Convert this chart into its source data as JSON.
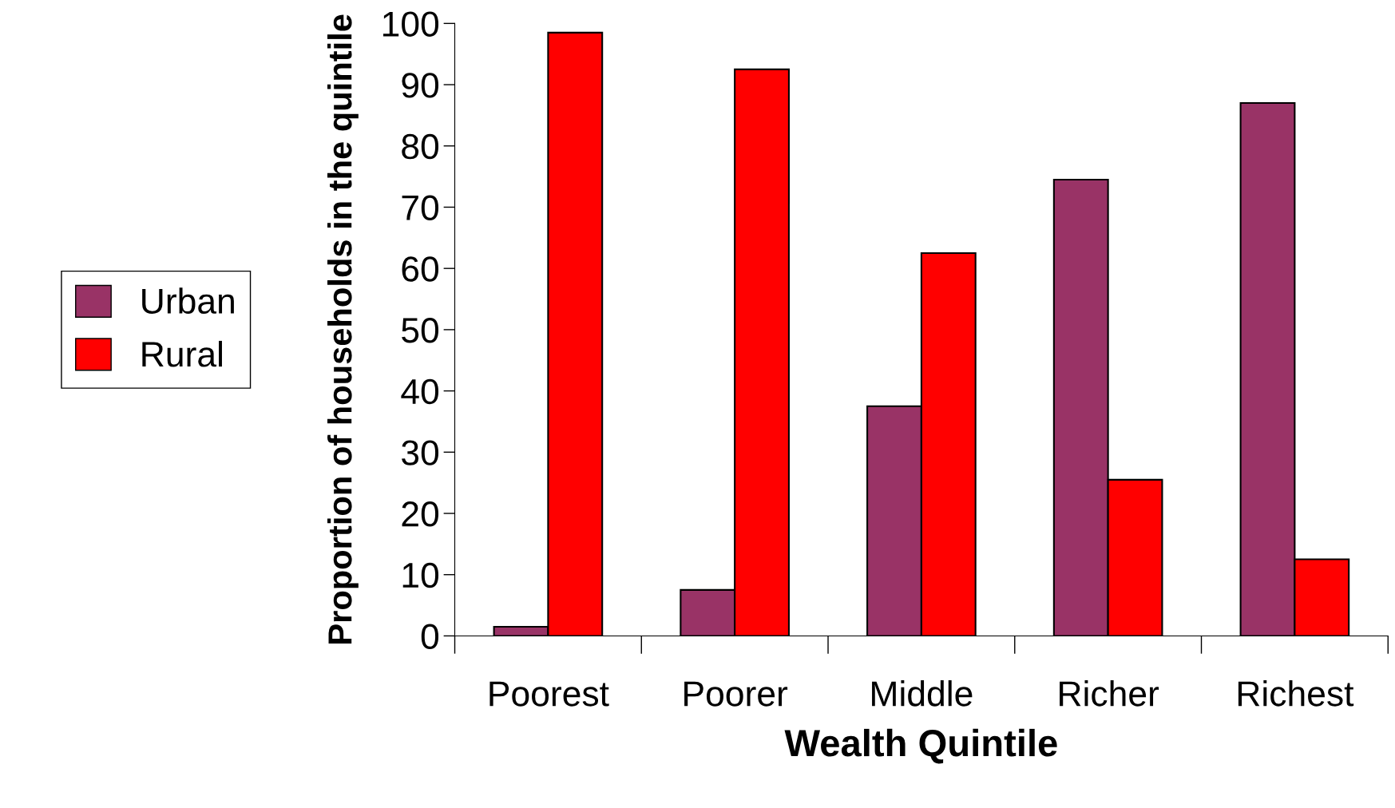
{
  "chart_data": {
    "type": "bar",
    "xlabel": "Wealth Quintile",
    "ylabel": "Proportion of households in the quintile",
    "categories": [
      "Poorest",
      "Poorer",
      "Middle",
      "Richer",
      "Richest"
    ],
    "series": [
      {
        "name": "Urban",
        "color": "#993366",
        "values": [
          1.5,
          7.5,
          37.5,
          74.5,
          87
        ]
      },
      {
        "name": "Rural",
        "color": "#ff0000",
        "values": [
          98.5,
          92.5,
          62.5,
          25.5,
          12.5
        ]
      }
    ],
    "ylim": [
      0,
      100
    ],
    "yticks": [
      0,
      10,
      20,
      30,
      40,
      50,
      60,
      70,
      80,
      90,
      100
    ],
    "grid": false,
    "legend": "left"
  }
}
